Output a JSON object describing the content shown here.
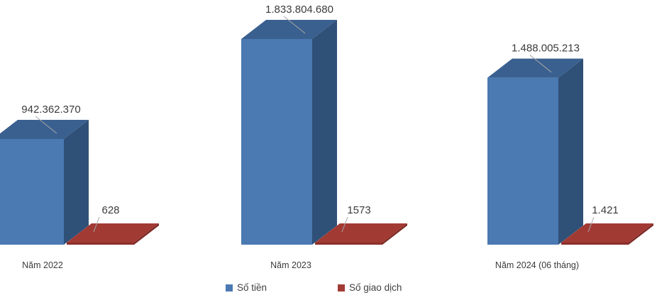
{
  "chart_data": {
    "type": "bar",
    "style": "3d-clustered-column",
    "title": "",
    "categories": [
      "Năm 2022",
      "Năm 2023",
      "Năm 2024 (06 tháng)"
    ],
    "series": [
      {
        "name": "Số tiền",
        "color": "#4b79b2",
        "color_top": "#3a608f",
        "color_side": "#2f5077",
        "values": [
          942362370,
          1833804680,
          1488005213
        ],
        "labels": [
          "942.362.370",
          "1.833.804.680",
          "1.488.005.213"
        ]
      },
      {
        "name": "Số giao dịch",
        "color": "#a23a34",
        "color_front": "#8a2f2a",
        "color_side": "#7c2a26",
        "values": [
          628,
          1573,
          1421
        ],
        "labels": [
          "628",
          "1573",
          "1.421"
        ]
      }
    ],
    "legend_position": "bottom",
    "grid": false,
    "axes_visible": false,
    "background": "#ffffff",
    "label_color": "#3b3b3b",
    "leader_line_color": "#a6a6a6"
  }
}
